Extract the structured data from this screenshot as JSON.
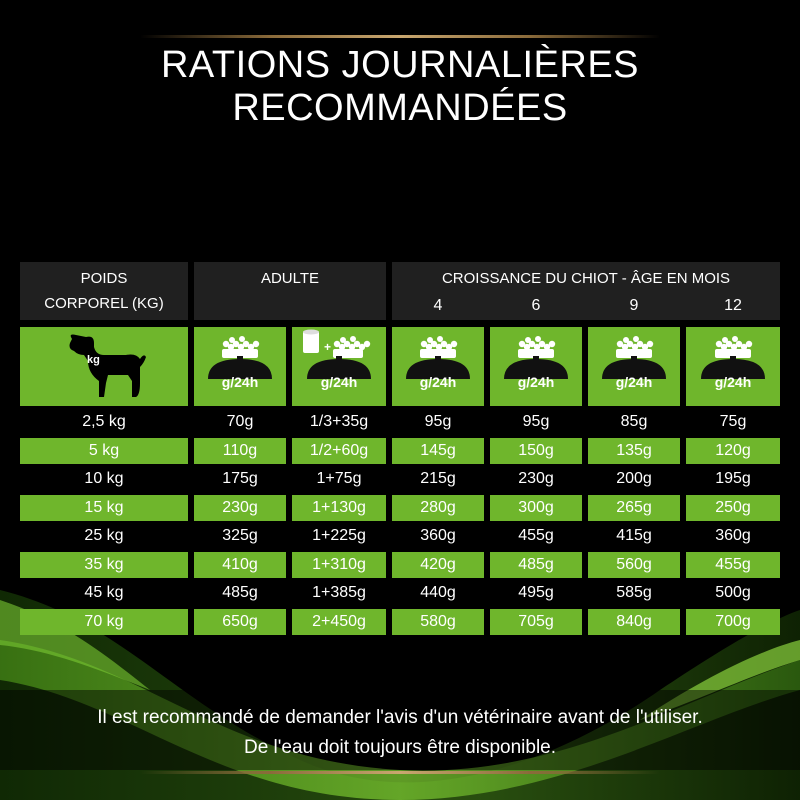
{
  "title": "RATIONS JOURNALIÈRES RECOMMANDÉES",
  "header": {
    "weight_line1": "POIDS",
    "weight_line2": "CORPOREL (KG)",
    "adult": "ADULTE",
    "growth": "CROISSANCE DU CHIOT - ÂGE EN MOIS",
    "months": [
      "4",
      "6",
      "9",
      "12"
    ]
  },
  "icons": {
    "dog_label": "kg",
    "bowl_label": "g/24h",
    "names": [
      "dog-icon",
      "scale-bowl-icon",
      "can-plus-bowl-icon"
    ]
  },
  "colors": {
    "green": "#6fb62c",
    "header_bg": "#202020",
    "background": "#000000",
    "gold": "#c9a770"
  },
  "rows": [
    {
      "weight": "2,5 kg",
      "values": [
        "70g",
        "1/3+35g",
        "95g",
        "95g",
        "85g",
        "75g"
      ]
    },
    {
      "weight": "5 kg",
      "values": [
        "110g",
        "1/2+60g",
        "145g",
        "150g",
        "135g",
        "120g"
      ]
    },
    {
      "weight": "10 kg",
      "values": [
        "175g",
        "1+75g",
        "215g",
        "230g",
        "200g",
        "195g"
      ]
    },
    {
      "weight": "15 kg",
      "values": [
        "230g",
        "1+130g",
        "280g",
        "300g",
        "265g",
        "250g"
      ]
    },
    {
      "weight": "25 kg",
      "values": [
        "325g",
        "1+225g",
        "360g",
        "455g",
        "415g",
        "360g"
      ]
    },
    {
      "weight": "35 kg",
      "values": [
        "410g",
        "1+310g",
        "420g",
        "485g",
        "560g",
        "455g"
      ]
    },
    {
      "weight": "45 kg",
      "values": [
        "485g",
        "1+385g",
        "440g",
        "495g",
        "585g",
        "500g"
      ]
    },
    {
      "weight": "70 kg",
      "values": [
        "650g",
        "2+450g",
        "580g",
        "705g",
        "840g",
        "700g"
      ]
    }
  ],
  "footer": {
    "line1": "Il est recommandé de demander l'avis d'un vétérinaire avant de l'utiliser.",
    "line2": "De l'eau doit toujours être disponible."
  }
}
